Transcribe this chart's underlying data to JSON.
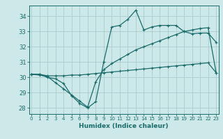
{
  "xlabel": "Humidex (Indice chaleur)",
  "ylabel": "",
  "bg_color": "#cce8e8",
  "grid_color": "#aacccc",
  "line_color": "#1a6b6b",
  "x_ticks": [
    0,
    1,
    2,
    3,
    4,
    5,
    6,
    7,
    8,
    9,
    10,
    11,
    12,
    13,
    14,
    15,
    16,
    17,
    18,
    19,
    20,
    21,
    22,
    23
  ],
  "y_ticks": [
    28,
    29,
    30,
    31,
    32,
    33,
    34
  ],
  "xlim": [
    -0.3,
    23.3
  ],
  "ylim": [
    27.6,
    34.7
  ],
  "curve1_x": [
    0,
    1,
    2,
    3,
    4,
    5,
    6,
    7,
    8,
    9,
    10,
    11,
    12,
    13,
    14,
    15,
    16,
    17,
    18,
    19,
    20,
    21,
    22,
    23
  ],
  "curve1_y": [
    30.2,
    30.2,
    30.0,
    29.9,
    29.6,
    28.8,
    28.3,
    28.0,
    28.4,
    31.0,
    33.3,
    33.4,
    33.8,
    34.4,
    33.1,
    33.3,
    33.4,
    33.4,
    33.4,
    33.0,
    32.85,
    32.9,
    32.9,
    32.3
  ],
  "curve2_x": [
    0,
    1,
    2,
    3,
    4,
    5,
    6,
    7,
    8,
    9,
    10,
    11,
    12,
    13,
    14,
    15,
    16,
    17,
    18,
    19,
    20,
    21,
    22,
    23
  ],
  "curve2_y": [
    30.2,
    30.15,
    30.05,
    29.65,
    29.25,
    28.85,
    28.45,
    28.05,
    29.7,
    30.5,
    30.9,
    31.2,
    31.5,
    31.8,
    32.0,
    32.2,
    32.4,
    32.6,
    32.8,
    33.0,
    33.1,
    33.2,
    33.25,
    30.3
  ],
  "curve3_x": [
    0,
    1,
    2,
    3,
    4,
    5,
    6,
    7,
    8,
    9,
    10,
    11,
    12,
    13,
    14,
    15,
    16,
    17,
    18,
    19,
    20,
    21,
    22,
    23
  ],
  "curve3_y": [
    30.2,
    30.2,
    30.1,
    30.1,
    30.1,
    30.15,
    30.15,
    30.2,
    30.25,
    30.3,
    30.35,
    30.4,
    30.45,
    30.5,
    30.55,
    30.6,
    30.65,
    30.7,
    30.75,
    30.8,
    30.85,
    30.9,
    30.95,
    30.3
  ]
}
